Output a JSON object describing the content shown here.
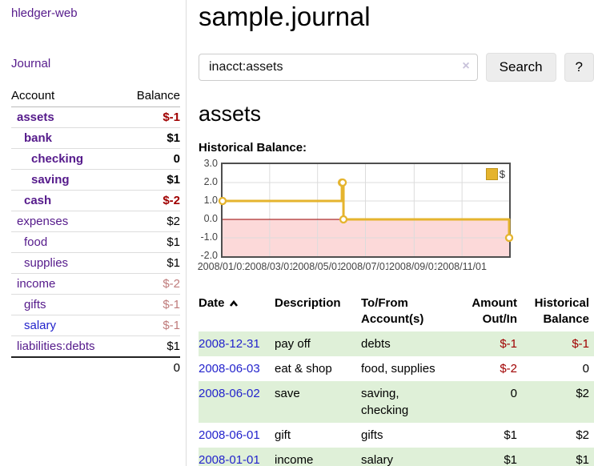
{
  "app": {
    "brand": "hledger-web",
    "nav": {
      "journal": "Journal"
    }
  },
  "sidebar": {
    "header": {
      "account": "Account",
      "balance": "Balance"
    },
    "accounts": [
      {
        "name": "assets",
        "balance": "$-1"
      },
      {
        "name": "bank",
        "balance": "$1"
      },
      {
        "name": "checking",
        "balance": "0"
      },
      {
        "name": "saving",
        "balance": "$1"
      },
      {
        "name": "cash",
        "balance": "$-2"
      },
      {
        "name": "expenses",
        "balance": "$2"
      },
      {
        "name": "food",
        "balance": "$1"
      },
      {
        "name": "supplies",
        "balance": "$1"
      },
      {
        "name": "income",
        "balance": "$-2"
      },
      {
        "name": "gifts",
        "balance": "$-1"
      },
      {
        "name": "salary",
        "balance": "$-1"
      },
      {
        "name": "liabilities:debts",
        "balance": "$1"
      }
    ],
    "total": "0"
  },
  "main": {
    "title": "sample.journal",
    "search": {
      "value": "inacct:assets",
      "clear": "×",
      "button": "Search",
      "help": "?"
    },
    "account_heading": "assets",
    "chart_heading": "Historical Balance:"
  },
  "chart_data": {
    "type": "line",
    "title": "Historical Balance",
    "legend_label": "$",
    "step": true,
    "x": [
      "2008/01/01",
      "2008/06/01",
      "2008/06/02",
      "2008/06/03",
      "2008/12/31"
    ],
    "values": [
      1,
      2,
      2,
      0,
      -1
    ],
    "xlim": [
      "2008/01/01",
      "2008/12/31"
    ],
    "ylim": [
      -2,
      3
    ],
    "xticks": [
      "2008/01/01",
      "2008/03/01",
      "2008/05/01",
      "2008/07/01",
      "2008/09/01",
      "2008/11/01"
    ],
    "yticks": [
      "3.0",
      "2.0",
      "1.0",
      "0.0",
      "-1.0",
      "-2.0"
    ],
    "grid": true,
    "legend_position": "top-right",
    "line_color": "#e5b42e",
    "negative_region_fill": "#fcd9d9",
    "zero_line_color": "#990000"
  },
  "register": {
    "headers": [
      "Date",
      "Description",
      "To/From Account(s)",
      "Amount Out/In",
      "Historical Balance"
    ],
    "rows": [
      {
        "date": "2008-12-31",
        "description": "pay off",
        "accounts": "debts",
        "amount": "$-1",
        "balance": "$-1"
      },
      {
        "date": "2008-06-03",
        "description": "eat & shop",
        "accounts": "food, supplies",
        "amount": "$-2",
        "balance": "0"
      },
      {
        "date": "2008-06-02",
        "description": "save",
        "accounts": "saving, checking",
        "amount": "0",
        "balance": "$2"
      },
      {
        "date": "2008-06-01",
        "description": "gift",
        "accounts": "gifts",
        "amount": "$1",
        "balance": "$2"
      },
      {
        "date": "2008-01-01",
        "description": "income",
        "accounts": "salary",
        "amount": "$1",
        "balance": "$1"
      }
    ]
  }
}
